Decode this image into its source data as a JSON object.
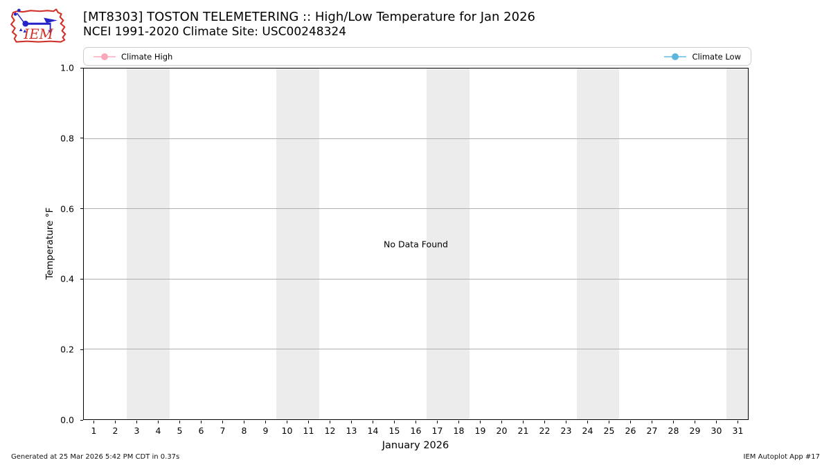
{
  "header": {
    "title": "[MT8303] TOSTON TELEMETERING :: High/Low Temperature for Jan 2026",
    "subtitle": "NCEI 1991-2020 Climate Site: USC00248324",
    "logo_text": "IEM"
  },
  "legend": {
    "items": [
      {
        "label": "Climate High",
        "line_color": "#ffc0cb",
        "marker_color": "#f9a8ba",
        "position": "left"
      },
      {
        "label": "Climate Low",
        "line_color": "#87ceeb",
        "marker_color": "#5bb5dc",
        "position": "right"
      }
    ]
  },
  "chart_data": {
    "type": "line",
    "title": "[MT8303] TOSTON TELEMETERING :: High/Low Temperature for Jan 2026",
    "subtitle": "NCEI 1991-2020 Climate Site: USC00248324",
    "no_data_message": "No Data Found",
    "xlabel": "January 2026",
    "ylabel": "Temperature °F",
    "xlim": [
      0.5,
      31.5
    ],
    "ylim": [
      0.0,
      1.0
    ],
    "grid": true,
    "grid_color": "#b0b0b0",
    "band_color": "#ececec",
    "xticks": [
      1,
      2,
      3,
      4,
      5,
      6,
      7,
      8,
      9,
      10,
      11,
      12,
      13,
      14,
      15,
      16,
      17,
      18,
      19,
      20,
      21,
      22,
      23,
      24,
      25,
      26,
      27,
      28,
      29,
      30,
      31
    ],
    "yticks": [
      0.0,
      0.2,
      0.4,
      0.6,
      0.8,
      1.0
    ],
    "ytick_labels": [
      "0.0",
      "0.2",
      "0.4",
      "0.6",
      "0.8",
      "1.0"
    ],
    "weekend_bands": [
      [
        2.5,
        4.5
      ],
      [
        9.5,
        11.5
      ],
      [
        16.5,
        18.5
      ],
      [
        23.5,
        25.5
      ],
      [
        30.5,
        31.5
      ]
    ],
    "series": [
      {
        "name": "Climate High",
        "color": "#ffc0cb",
        "values": []
      },
      {
        "name": "Climate Low",
        "color": "#87ceeb",
        "values": []
      }
    ]
  },
  "footer": {
    "generated": "Generated at 25 Mar 2026 5:42 PM CDT in 0.37s",
    "app": "IEM Autoplot App #17"
  },
  "logo_colors": {
    "red": "#d03028",
    "blue": "#2424c8"
  }
}
